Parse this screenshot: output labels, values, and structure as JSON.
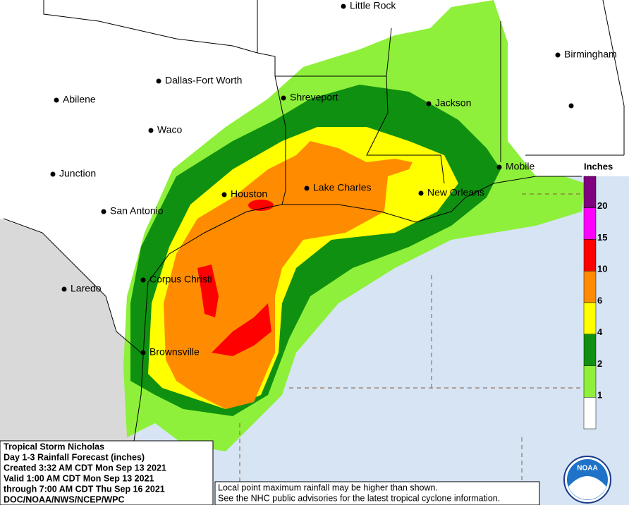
{
  "cities": [
    "Little Rock",
    "Birmingham",
    "Dallas-Fort Worth",
    "Abilene",
    "Shreveport",
    "Jackson",
    "Waco",
    "Junction",
    "Mobile",
    "Houston",
    "Lake Charles",
    "New Orleans",
    "San Antonio",
    "Corpus Christi",
    "Laredo",
    "Brownsville"
  ],
  "legend": {
    "title": "Inches",
    "colors": [
      "#800080",
      "#ff00ff",
      "#ff0000",
      "#ff8c00",
      "#ffff00",
      "#109010",
      "#8ef03a",
      "#ffffff"
    ],
    "labels": [
      "20",
      "15",
      "10",
      "6",
      "4",
      "2",
      "1"
    ]
  },
  "info": [
    "Tropical Storm Nicholas",
    "Day 1-3 Rainfall Forecast (inches)",
    "Created 3:32 AM CDT Mon Sep 13 2021",
    "Valid 1:00 AM CDT Mon Sep 13 2021",
    "through 7:00 AM CDT Thu Sep 16 2021",
    "DOC/NOAA/NWS/NCEP/WPC"
  ],
  "disclaimer": [
    "Local point maximum rainfall may be higher than shown.",
    "See the NHC public advisories for the latest tropical cyclone information."
  ],
  "logo": "NOAA"
}
